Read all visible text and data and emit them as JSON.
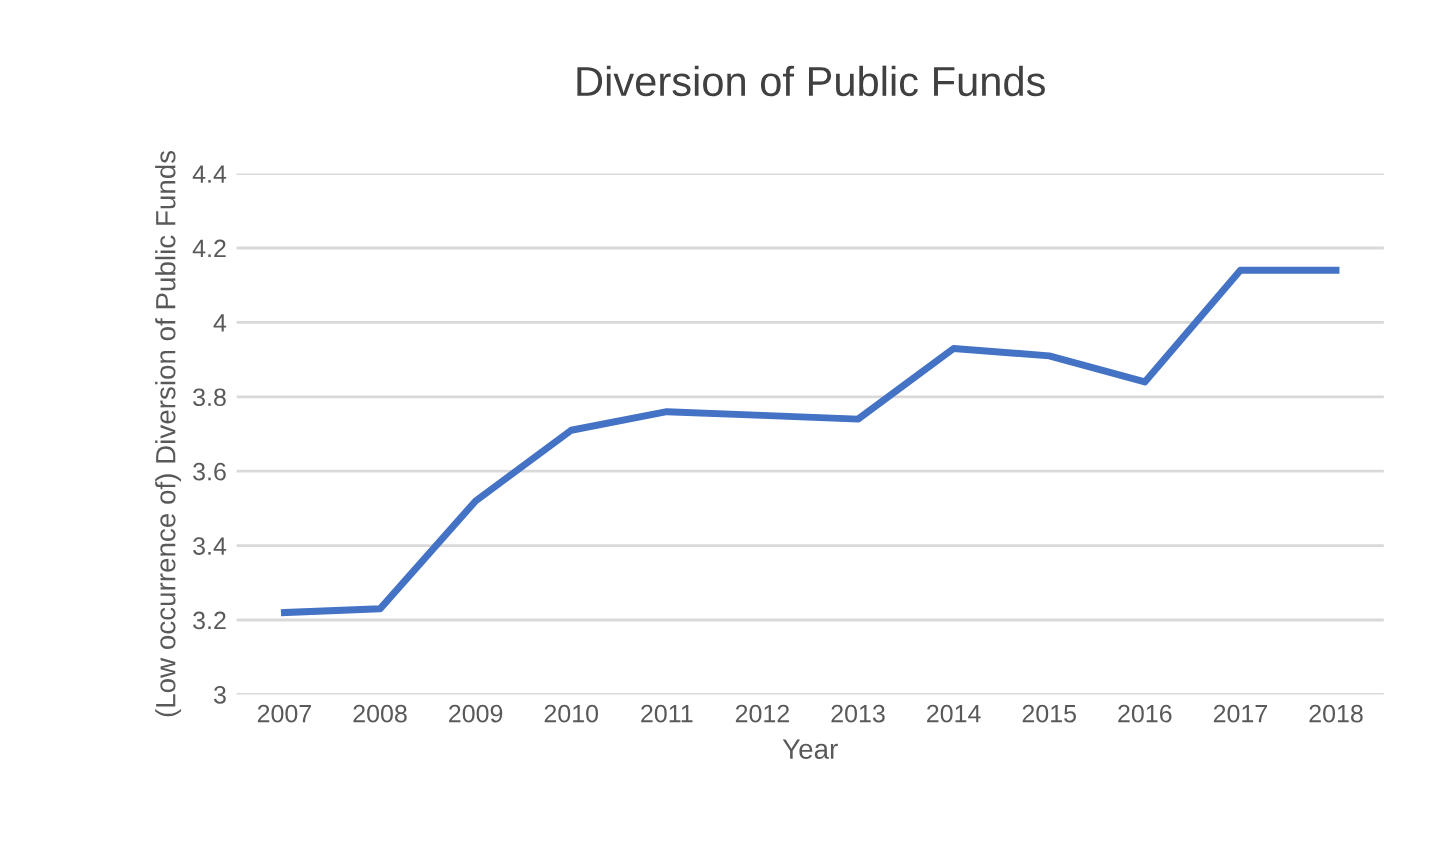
{
  "chart_data": {
    "type": "line",
    "title": "Diversion of Public Funds",
    "xlabel": "Year",
    "ylabel": "(Low occurrence of) Diversion of Public Funds",
    "categories": [
      "2007",
      "2008",
      "2009",
      "2010",
      "2011",
      "2012",
      "2013",
      "2014",
      "2015",
      "2016",
      "2017",
      "2018"
    ],
    "series": [
      {
        "color": "#4472c4",
        "values": [
          3.22,
          3.23,
          3.52,
          3.71,
          3.76,
          3.75,
          3.74,
          3.93,
          3.91,
          3.84,
          4.14,
          4.14
        ]
      }
    ],
    "ylim": [
      3,
      4.4
    ],
    "yticks": [
      {
        "value": 3,
        "label": "3"
      },
      3.2,
      3.4,
      3.6,
      3.8,
      {
        "value": 4,
        "label": "4"
      },
      4.2,
      4.4
    ],
    "grid": "y",
    "legend": false,
    "marker": "none",
    "line_style": "solid"
  }
}
